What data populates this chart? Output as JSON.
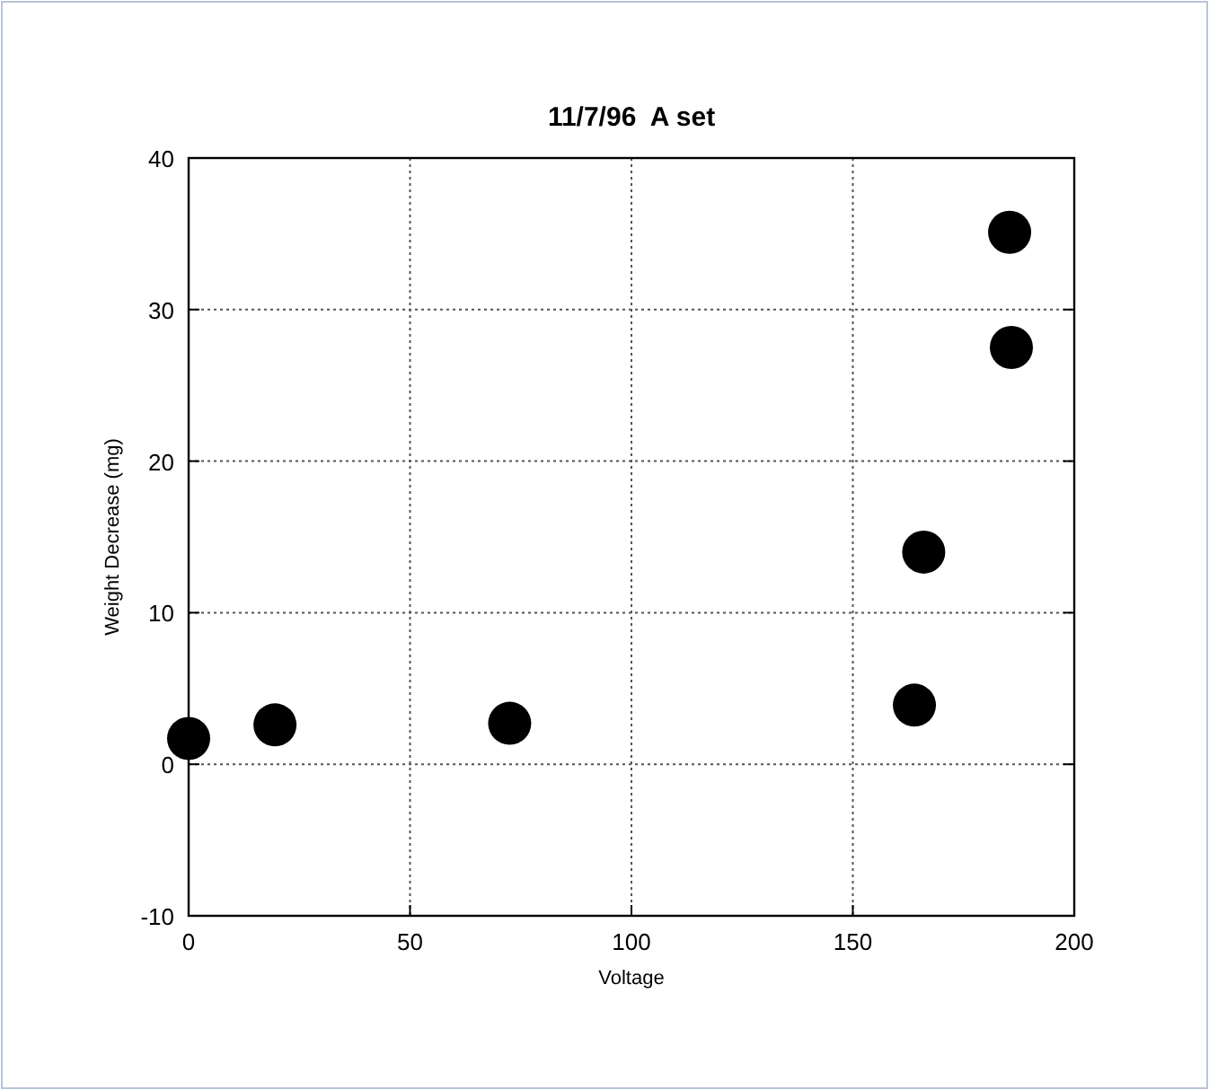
{
  "chart_data": {
    "type": "scatter",
    "title": "11/7/96  A set",
    "xlabel": "Voltage",
    "ylabel": "Weight Decrease (mg)",
    "x": [
      0,
      19.5,
      72.5,
      163.9,
      166,
      185.4,
      185.8
    ],
    "values": [
      1.7,
      2.6,
      2.7,
      3.9,
      14.0,
      35.1,
      27.5
    ],
    "color": "#000000",
    "marker": "circle",
    "xlim": [
      0,
      200
    ],
    "xticks": [
      0,
      50,
      100,
      150,
      200
    ],
    "ylim": [
      -10,
      40
    ],
    "yticks": [
      -10,
      0,
      10,
      20,
      30,
      40
    ],
    "grid": true
  }
}
